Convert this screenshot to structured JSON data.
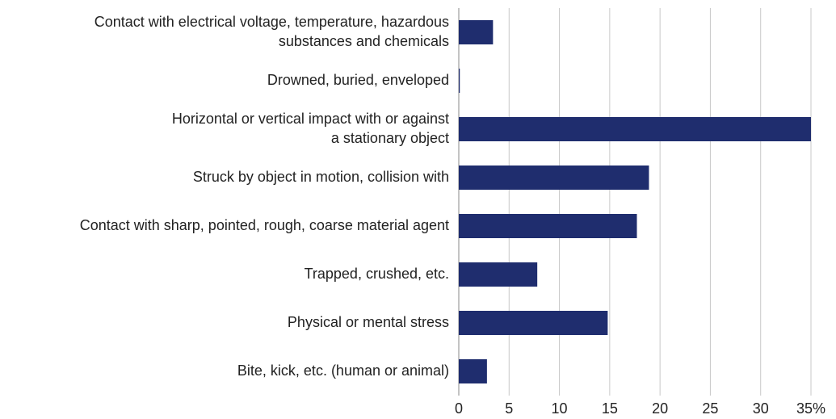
{
  "chart_data": {
    "type": "barh",
    "categories": [
      "Contact with electrical voltage, temperature, hazardous\nsubstances and chemicals",
      "Drowned, buried, enveloped",
      "Horizontal or vertical impact with or against\na stationary object",
      "Struck by object in motion, collision with",
      "Contact with sharp, pointed, rough, coarse material agent",
      "Trapped, crushed, etc.",
      "Physical or mental stress",
      "Bite, kick, etc. (human or animal)"
    ],
    "values": [
      3.4,
      0.1,
      35,
      18.9,
      17.7,
      7.8,
      14.8,
      2.8
    ],
    "color": "#1f2d6e",
    "xlim": [
      0,
      35
    ],
    "xticks": [
      0,
      5,
      10,
      15,
      20,
      25,
      30,
      {
        "value": 35,
        "label": "35%"
      }
    ],
    "grid": true
  }
}
